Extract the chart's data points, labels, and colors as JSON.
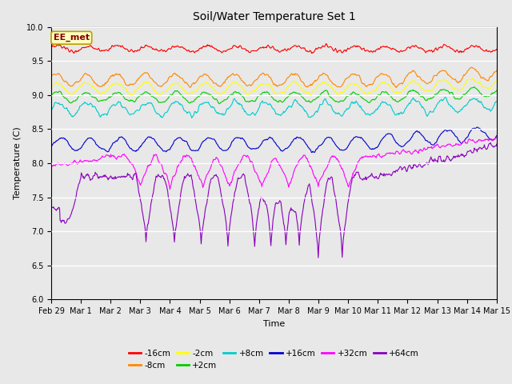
{
  "title": "Soil/Water Temperature Set 1",
  "xlabel": "Time",
  "ylabel": "Temperature (C)",
  "ylim": [
    6.0,
    10.0
  ],
  "yticks": [
    6.0,
    6.5,
    7.0,
    7.5,
    8.0,
    8.5,
    9.0,
    9.5,
    10.0
  ],
  "background_color": "#e8e8e8",
  "plot_bg_color": "#e8e8e8",
  "annotation_text": "EE_met",
  "annotation_bg": "#ffffc0",
  "annotation_border": "#b8a000",
  "series": [
    {
      "label": "-16cm",
      "color": "#ff0000"
    },
    {
      "label": "-8cm",
      "color": "#ff8800"
    },
    {
      "label": "-2cm",
      "color": "#ffff00"
    },
    {
      "label": "+2cm",
      "color": "#00cc00"
    },
    {
      "label": "+8cm",
      "color": "#00cccc"
    },
    {
      "label": "+16cm",
      "color": "#0000cc"
    },
    {
      "label": "+32cm",
      "color": "#ff00ff"
    },
    {
      "label": "+64cm",
      "color": "#8800bb"
    }
  ],
  "n_points": 800,
  "x_start_days": 0,
  "x_end_days": 15,
  "xtick_positions": [
    0,
    1,
    2,
    3,
    4,
    5,
    6,
    7,
    8,
    9,
    10,
    11,
    12,
    13,
    14,
    15
  ],
  "xtick_labels": [
    "Feb 29",
    "Mar 1",
    "Mar 2",
    "Mar 3",
    "Mar 4",
    "Mar 5",
    "Mar 6",
    "Mar 7",
    "Mar 8",
    "Mar 9",
    "Mar 10",
    "Mar 11",
    "Mar 12",
    "Mar 13",
    "Mar 14",
    "Mar 15"
  ],
  "linewidth": 0.8,
  "figsize": [
    6.4,
    4.8
  ],
  "dpi": 100,
  "title_fontsize": 10,
  "tick_fontsize": 7,
  "label_fontsize": 8,
  "legend_fontsize": 7.5
}
